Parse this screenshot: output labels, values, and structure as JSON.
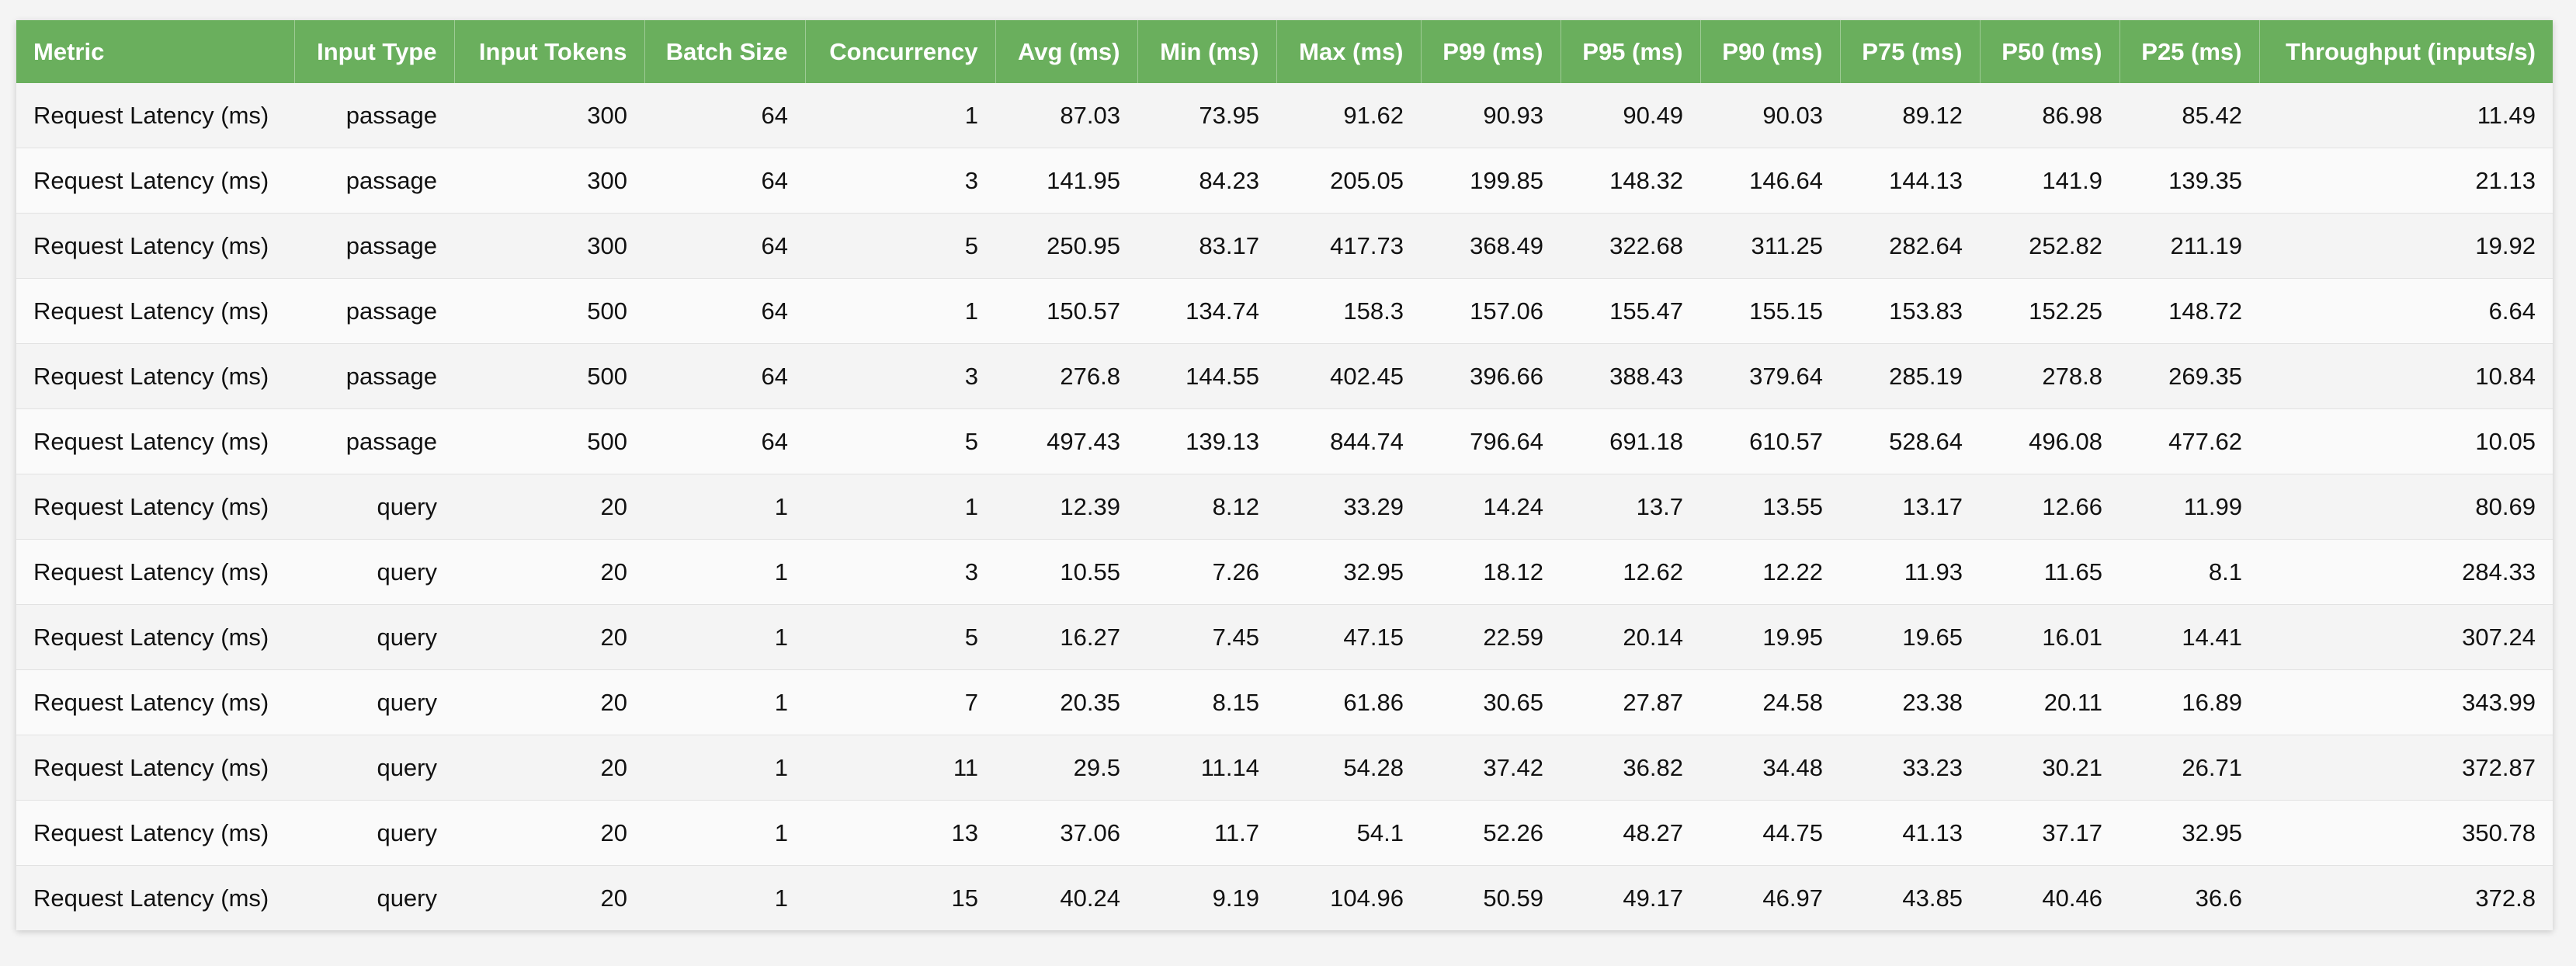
{
  "table": {
    "headers": [
      "Metric",
      "Input Type",
      "Input Tokens",
      "Batch Size",
      "Concurrency",
      "Avg (ms)",
      "Min (ms)",
      "Max (ms)",
      "P99 (ms)",
      "P95 (ms)",
      "P90 (ms)",
      "P75 (ms)",
      "P50 (ms)",
      "P25 (ms)",
      "Throughput (inputs/s)"
    ],
    "rows": [
      [
        "Request Latency (ms)",
        "passage",
        "300",
        "64",
        "1",
        "87.03",
        "73.95",
        "91.62",
        "90.93",
        "90.49",
        "90.03",
        "89.12",
        "86.98",
        "85.42",
        "11.49"
      ],
      [
        "Request Latency (ms)",
        "passage",
        "300",
        "64",
        "3",
        "141.95",
        "84.23",
        "205.05",
        "199.85",
        "148.32",
        "146.64",
        "144.13",
        "141.9",
        "139.35",
        "21.13"
      ],
      [
        "Request Latency (ms)",
        "passage",
        "300",
        "64",
        "5",
        "250.95",
        "83.17",
        "417.73",
        "368.49",
        "322.68",
        "311.25",
        "282.64",
        "252.82",
        "211.19",
        "19.92"
      ],
      [
        "Request Latency (ms)",
        "passage",
        "500",
        "64",
        "1",
        "150.57",
        "134.74",
        "158.3",
        "157.06",
        "155.47",
        "155.15",
        "153.83",
        "152.25",
        "148.72",
        "6.64"
      ],
      [
        "Request Latency (ms)",
        "passage",
        "500",
        "64",
        "3",
        "276.8",
        "144.55",
        "402.45",
        "396.66",
        "388.43",
        "379.64",
        "285.19",
        "278.8",
        "269.35",
        "10.84"
      ],
      [
        "Request Latency (ms)",
        "passage",
        "500",
        "64",
        "5",
        "497.43",
        "139.13",
        "844.74",
        "796.64",
        "691.18",
        "610.57",
        "528.64",
        "496.08",
        "477.62",
        "10.05"
      ],
      [
        "Request Latency (ms)",
        "query",
        "20",
        "1",
        "1",
        "12.39",
        "8.12",
        "33.29",
        "14.24",
        "13.7",
        "13.55",
        "13.17",
        "12.66",
        "11.99",
        "80.69"
      ],
      [
        "Request Latency (ms)",
        "query",
        "20",
        "1",
        "3",
        "10.55",
        "7.26",
        "32.95",
        "18.12",
        "12.62",
        "12.22",
        "11.93",
        "11.65",
        "8.1",
        "284.33"
      ],
      [
        "Request Latency (ms)",
        "query",
        "20",
        "1",
        "5",
        "16.27",
        "7.45",
        "47.15",
        "22.59",
        "20.14",
        "19.95",
        "19.65",
        "16.01",
        "14.41",
        "307.24"
      ],
      [
        "Request Latency (ms)",
        "query",
        "20",
        "1",
        "7",
        "20.35",
        "8.15",
        "61.86",
        "30.65",
        "27.87",
        "24.58",
        "23.38",
        "20.11",
        "16.89",
        "343.99"
      ],
      [
        "Request Latency (ms)",
        "query",
        "20",
        "1",
        "11",
        "29.5",
        "11.14",
        "54.28",
        "37.42",
        "36.82",
        "34.48",
        "33.23",
        "30.21",
        "26.71",
        "372.87"
      ],
      [
        "Request Latency (ms)",
        "query",
        "20",
        "1",
        "13",
        "37.06",
        "11.7",
        "54.1",
        "52.26",
        "48.27",
        "44.75",
        "41.13",
        "37.17",
        "32.95",
        "350.78"
      ],
      [
        "Request Latency (ms)",
        "query",
        "20",
        "1",
        "15",
        "40.24",
        "9.19",
        "104.96",
        "50.59",
        "49.17",
        "46.97",
        "43.85",
        "40.46",
        "36.6",
        "372.8"
      ]
    ]
  },
  "colors": {
    "header_bg": "#6aaf5d",
    "header_text": "#ffffff",
    "row_odd": "#f4f4f4",
    "row_even": "#fafafa"
  }
}
